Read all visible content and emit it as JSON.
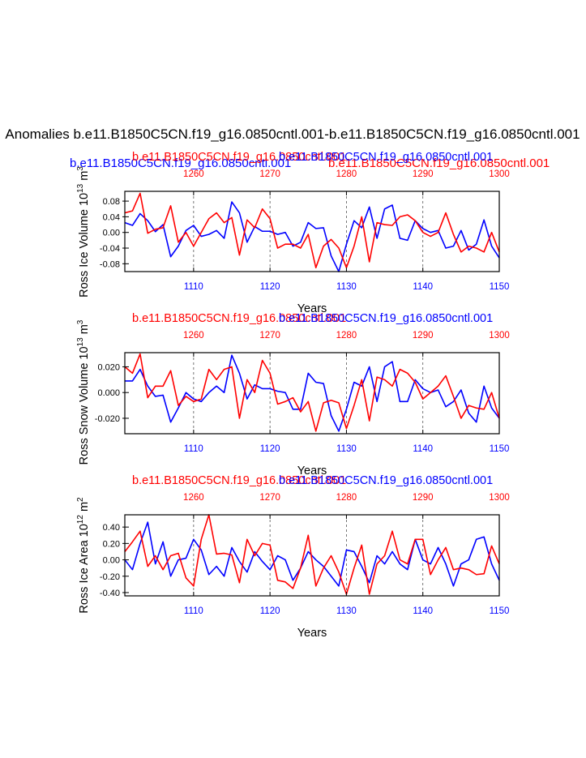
{
  "page": {
    "main_title": "Anomalies b.e11.B1850C5CN.f19_g16.0850cntl.001-b.e11.B1850C5CN.f19_g16.0850cntl.001",
    "top_left_blue_label": "b.e11.B1850C5CN.f19_g16.0850cntl.001",
    "top_right_red_label": "b.e11.B1850C5CN.f19_g16.0850cntl.001"
  },
  "chart_data": [
    {
      "type": "line",
      "title": "",
      "label_red": "b.e11.B1850C5CN.f19_g16.0850cntl.001",
      "label_blue": "b.e11.B1850C5CN.f19_g16.0850cntl.001",
      "ylabel": "Ross Ice Volume 10^13 m^3",
      "ylabel_main": "Ross Ice Volume 10",
      "ylabel_exp": "13",
      "ylabel_unit": "m",
      "ylabel_unit_exp": "3",
      "xlabel": "Years",
      "ylim": [
        -0.1,
        0.105
      ],
      "yticks": [
        -0.08,
        -0.04,
        0.0,
        0.04,
        0.08
      ],
      "ytick_labels": [
        "-0.08",
        "-0.04",
        "0.00",
        "0.04",
        "0.08"
      ],
      "bottom_axis": {
        "range": [
          1101,
          1150
        ],
        "ticks": [
          1110,
          1120,
          1130,
          1140,
          1150
        ]
      },
      "top_axis": {
        "range": [
          1251,
          1300
        ],
        "ticks": [
          1260,
          1270,
          1280,
          1290,
          1300
        ]
      },
      "series": [
        {
          "name": "b.e11.B1850C5CN.f19_g16.0850cntl.001",
          "color": "#0000ff",
          "axis": "bottom",
          "x": [
            1101,
            1102,
            1103,
            1104,
            1105,
            1106,
            1107,
            1108,
            1109,
            1110,
            1111,
            1112,
            1113,
            1114,
            1115,
            1116,
            1117,
            1118,
            1119,
            1120,
            1121,
            1122,
            1123,
            1124,
            1125,
            1126,
            1127,
            1128,
            1129,
            1130,
            1131,
            1132,
            1133,
            1134,
            1135,
            1136,
            1137,
            1138,
            1139,
            1140,
            1141,
            1142,
            1143,
            1144,
            1145,
            1146,
            1147,
            1148,
            1149,
            1150
          ],
          "values": [
            0.025,
            0.018,
            0.048,
            0.03,
            0.002,
            0.02,
            -0.062,
            -0.035,
            0.005,
            0.018,
            -0.01,
            -0.005,
            0.005,
            -0.015,
            0.078,
            0.05,
            -0.025,
            0.015,
            0.003,
            0.003,
            -0.005,
            0.0,
            -0.035,
            -0.025,
            0.025,
            0.01,
            0.012,
            -0.06,
            -0.1,
            -0.03,
            0.03,
            0.012,
            0.065,
            -0.015,
            0.06,
            0.07,
            -0.015,
            -0.02,
            0.03,
            0.01,
            0.0,
            0.005,
            -0.04,
            -0.035,
            0.005,
            -0.045,
            -0.03,
            0.032,
            -0.035,
            -0.065
          ]
        },
        {
          "name": "b.e11.B1850C5CN.f19_g16.0850cntl.001",
          "color": "#ff0000",
          "axis": "top",
          "x": [
            1251,
            1252,
            1253,
            1254,
            1255,
            1256,
            1257,
            1258,
            1259,
            1260,
            1261,
            1262,
            1263,
            1264,
            1265,
            1266,
            1267,
            1268,
            1269,
            1270,
            1271,
            1272,
            1273,
            1274,
            1275,
            1276,
            1277,
            1278,
            1279,
            1280,
            1281,
            1282,
            1283,
            1284,
            1285,
            1286,
            1287,
            1288,
            1289,
            1290,
            1291,
            1292,
            1293,
            1294,
            1295,
            1296,
            1297,
            1298,
            1299,
            1300
          ],
          "values": [
            0.05,
            0.055,
            0.1,
            -0.002,
            0.008,
            0.012,
            0.068,
            -0.025,
            0.0,
            -0.035,
            0.0,
            0.035,
            0.05,
            0.025,
            0.038,
            -0.058,
            0.032,
            0.012,
            0.06,
            0.035,
            -0.04,
            -0.03,
            -0.03,
            -0.04,
            -0.005,
            -0.09,
            -0.035,
            -0.018,
            -0.04,
            -0.09,
            -0.035,
            0.04,
            -0.075,
            0.025,
            0.02,
            0.018,
            0.04,
            0.045,
            0.03,
            0.0,
            -0.01,
            0.0,
            0.05,
            -0.005,
            -0.05,
            -0.035,
            -0.04,
            -0.05,
            0.0,
            -0.05
          ]
        }
      ]
    },
    {
      "type": "line",
      "title": "",
      "label_red": "b.e11.B1850C5CN.f19_g16.0850cntl.001",
      "label_blue": "b.e11.B1850C5CN.f19_g16.0850cntl.001",
      "ylabel": "Ross Snow Volume 10^13 m^3",
      "ylabel_main": "Ross Snow Volume 10",
      "ylabel_exp": "13",
      "ylabel_unit": "m",
      "ylabel_unit_exp": "3",
      "xlabel": "Years",
      "ylim": [
        -0.032,
        0.031
      ],
      "yticks": [
        -0.02,
        0.0,
        0.02
      ],
      "ytick_labels": [
        "-0.020",
        "0.000",
        "0.020"
      ],
      "bottom_axis": {
        "range": [
          1101,
          1150
        ],
        "ticks": [
          1110,
          1120,
          1130,
          1140,
          1150
        ]
      },
      "top_axis": {
        "range": [
          1251,
          1300
        ],
        "ticks": [
          1260,
          1270,
          1280,
          1290,
          1300
        ]
      },
      "series": [
        {
          "name": "b.e11.B1850C5CN.f19_g16.0850cntl.001",
          "color": "#0000ff",
          "axis": "bottom",
          "x": [
            1101,
            1102,
            1103,
            1104,
            1105,
            1106,
            1107,
            1108,
            1109,
            1110,
            1111,
            1112,
            1113,
            1114,
            1115,
            1116,
            1117,
            1118,
            1119,
            1120,
            1121,
            1122,
            1123,
            1124,
            1125,
            1126,
            1127,
            1128,
            1129,
            1130,
            1131,
            1132,
            1133,
            1134,
            1135,
            1136,
            1137,
            1138,
            1139,
            1140,
            1141,
            1142,
            1143,
            1144,
            1145,
            1146,
            1147,
            1148,
            1149,
            1150
          ],
          "values": [
            0.009,
            0.009,
            0.018,
            0.005,
            -0.003,
            -0.002,
            -0.023,
            -0.012,
            0.0,
            -0.005,
            -0.007,
            0.0,
            0.005,
            0.0,
            0.029,
            0.015,
            -0.005,
            0.006,
            0.003,
            0.003,
            0.001,
            0.0,
            -0.013,
            -0.013,
            0.015,
            0.008,
            0.007,
            -0.018,
            -0.03,
            -0.013,
            0.008,
            0.005,
            0.02,
            -0.007,
            0.02,
            0.024,
            -0.007,
            -0.007,
            0.01,
            0.003,
            0.0,
            0.002,
            -0.011,
            -0.007,
            0.002,
            -0.016,
            -0.023,
            0.005,
            -0.012,
            -0.02
          ]
        },
        {
          "name": "b.e11.B1850C5CN.f19_g16.0850cntl.001",
          "color": "#ff0000",
          "axis": "top",
          "x": [
            1251,
            1252,
            1253,
            1254,
            1255,
            1256,
            1257,
            1258,
            1259,
            1260,
            1261,
            1262,
            1263,
            1264,
            1265,
            1266,
            1267,
            1268,
            1269,
            1270,
            1271,
            1272,
            1273,
            1274,
            1275,
            1276,
            1277,
            1278,
            1279,
            1280,
            1281,
            1282,
            1283,
            1284,
            1285,
            1286,
            1287,
            1288,
            1289,
            1290,
            1291,
            1292,
            1293,
            1294,
            1295,
            1296,
            1297,
            1298,
            1299,
            1300
          ],
          "values": [
            0.02,
            0.015,
            0.03,
            -0.004,
            0.005,
            0.005,
            0.017,
            -0.01,
            -0.003,
            -0.007,
            -0.005,
            0.018,
            0.01,
            0.018,
            0.02,
            -0.02,
            0.01,
            0.0,
            0.025,
            0.015,
            -0.009,
            -0.007,
            -0.004,
            -0.015,
            -0.007,
            -0.03,
            -0.008,
            -0.006,
            -0.008,
            -0.028,
            -0.01,
            0.01,
            -0.022,
            0.012,
            0.01,
            0.005,
            0.018,
            0.015,
            0.008,
            -0.005,
            0.0,
            0.005,
            0.013,
            -0.003,
            -0.02,
            -0.01,
            -0.012,
            -0.013,
            0.0,
            -0.02
          ]
        }
      ]
    },
    {
      "type": "line",
      "title": "",
      "label_red": "b.e11.B1850C5CN.f19_g16.0850cntl.001",
      "label_blue": "b.e11.B1850C5CN.f19_g16.0850cntl.001",
      "ylabel": "Ross Ice Area 10^12 m^2",
      "ylabel_main": "Ross Ice Area 10",
      "ylabel_exp": "12",
      "ylabel_unit": "m",
      "ylabel_unit_exp": "2",
      "xlabel": "Years",
      "ylim": [
        -0.44,
        0.55
      ],
      "yticks": [
        -0.4,
        -0.2,
        0.0,
        0.2,
        0.4
      ],
      "ytick_labels": [
        "-0.40",
        "-0.20",
        "0.00",
        "0.20",
        "0.40"
      ],
      "bottom_axis": {
        "range": [
          1101,
          1150
        ],
        "ticks": [
          1110,
          1120,
          1130,
          1140,
          1150
        ]
      },
      "top_axis": {
        "range": [
          1251,
          1300
        ],
        "ticks": [
          1260,
          1270,
          1280,
          1290,
          1300
        ]
      },
      "series": [
        {
          "name": "b.e11.B1850C5CN.f19_g16.0850cntl.001",
          "color": "#0000ff",
          "axis": "bottom",
          "x": [
            1101,
            1102,
            1103,
            1104,
            1105,
            1106,
            1107,
            1108,
            1109,
            1110,
            1111,
            1112,
            1113,
            1114,
            1115,
            1116,
            1117,
            1118,
            1119,
            1120,
            1121,
            1122,
            1123,
            1124,
            1125,
            1126,
            1127,
            1128,
            1129,
            1130,
            1131,
            1132,
            1133,
            1134,
            1135,
            1136,
            1137,
            1138,
            1139,
            1140,
            1141,
            1142,
            1143,
            1144,
            1145,
            1146,
            1147,
            1148,
            1149,
            1150
          ],
          "values": [
            0.0,
            -0.12,
            0.2,
            0.46,
            -0.05,
            0.22,
            -0.2,
            0.0,
            0.02,
            0.25,
            0.12,
            -0.18,
            -0.08,
            -0.2,
            0.15,
            -0.02,
            -0.15,
            0.1,
            -0.02,
            -0.12,
            0.05,
            0.0,
            -0.25,
            -0.1,
            0.1,
            0.0,
            -0.08,
            -0.2,
            -0.32,
            0.12,
            0.1,
            -0.08,
            -0.28,
            0.05,
            -0.05,
            0.1,
            -0.05,
            -0.12,
            0.25,
            0.0,
            -0.05,
            0.15,
            -0.05,
            -0.32,
            -0.05,
            0.0,
            0.25,
            0.28,
            -0.05,
            -0.25
          ]
        },
        {
          "name": "b.e11.B1850C5CN.f19_g16.0850cntl.001",
          "color": "#ff0000",
          "axis": "top",
          "x": [
            1251,
            1252,
            1253,
            1254,
            1255,
            1256,
            1257,
            1258,
            1259,
            1260,
            1261,
            1262,
            1263,
            1264,
            1265,
            1266,
            1267,
            1268,
            1269,
            1270,
            1271,
            1272,
            1273,
            1274,
            1275,
            1276,
            1277,
            1278,
            1279,
            1280,
            1281,
            1282,
            1283,
            1284,
            1285,
            1286,
            1287,
            1288,
            1289,
            1290,
            1291,
            1292,
            1293,
            1294,
            1295,
            1296,
            1297,
            1298,
            1299,
            1300
          ],
          "values": [
            0.1,
            0.22,
            0.35,
            -0.08,
            0.05,
            -0.12,
            0.05,
            0.08,
            -0.22,
            -0.32,
            0.25,
            0.55,
            0.07,
            0.08,
            0.06,
            -0.28,
            0.25,
            0.05,
            0.2,
            0.18,
            -0.25,
            -0.27,
            -0.35,
            -0.1,
            0.3,
            -0.32,
            -0.1,
            0.05,
            -0.15,
            -0.42,
            -0.1,
            0.18,
            -0.42,
            -0.05,
            0.05,
            0.35,
            0.0,
            -0.05,
            0.25,
            0.25,
            -0.18,
            0.0,
            0.15,
            -0.12,
            -0.1,
            -0.12,
            -0.18,
            -0.17,
            0.17,
            -0.05
          ]
        }
      ]
    }
  ]
}
